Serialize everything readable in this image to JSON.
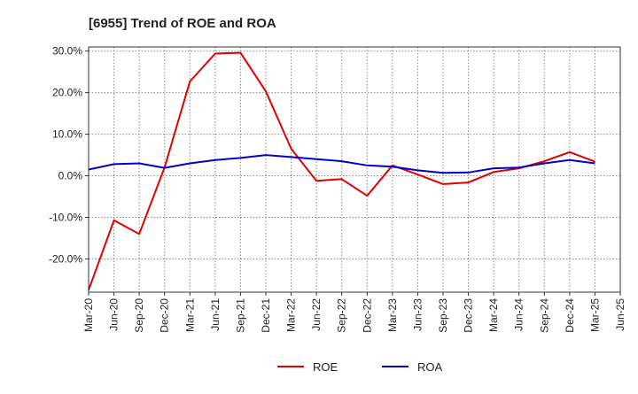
{
  "chart_data": {
    "type": "line",
    "title": "[6955]  Trend of ROE and ROA",
    "xlabel": "",
    "ylabel": "",
    "categories": [
      "Mar-20",
      "Jun-20",
      "Sep-20",
      "Dec-20",
      "Mar-21",
      "Jun-21",
      "Sep-21",
      "Dec-21",
      "Mar-22",
      "Jun-22",
      "Sep-22",
      "Dec-22",
      "Mar-23",
      "Jun-23",
      "Sep-23",
      "Dec-23",
      "Mar-24",
      "Jun-24",
      "Sep-24",
      "Dec-24",
      "Mar-25",
      "Jun-25"
    ],
    "ylim": [
      -28.0,
      31.0
    ],
    "yticks": [
      30,
      20,
      10,
      0,
      -10,
      -20
    ],
    "ytick_labels": [
      "30.0%",
      "20.0%",
      "10.0%",
      "0.0%",
      "-10.0%",
      "-20.0%"
    ],
    "grid": true,
    "legend_position": "bottom",
    "series": [
      {
        "name": "ROE",
        "color": "#e00000",
        "values": [
          -27.5,
          -10.7,
          -14.0,
          2.0,
          22.7,
          29.4,
          29.6,
          20.3,
          6.5,
          -1.2,
          -0.8,
          -4.8,
          2.5,
          0.3,
          -2.0,
          -1.6,
          0.9,
          1.8,
          3.5,
          5.7,
          3.4,
          null
        ]
      },
      {
        "name": "ROA",
        "color": "#0000cc",
        "values": [
          1.5,
          2.8,
          3.0,
          1.9,
          3.0,
          3.8,
          4.3,
          5.0,
          4.5,
          4.0,
          3.5,
          2.5,
          2.2,
          1.3,
          0.7,
          0.8,
          1.8,
          2.0,
          3.0,
          3.8,
          3.0,
          null
        ]
      }
    ]
  }
}
